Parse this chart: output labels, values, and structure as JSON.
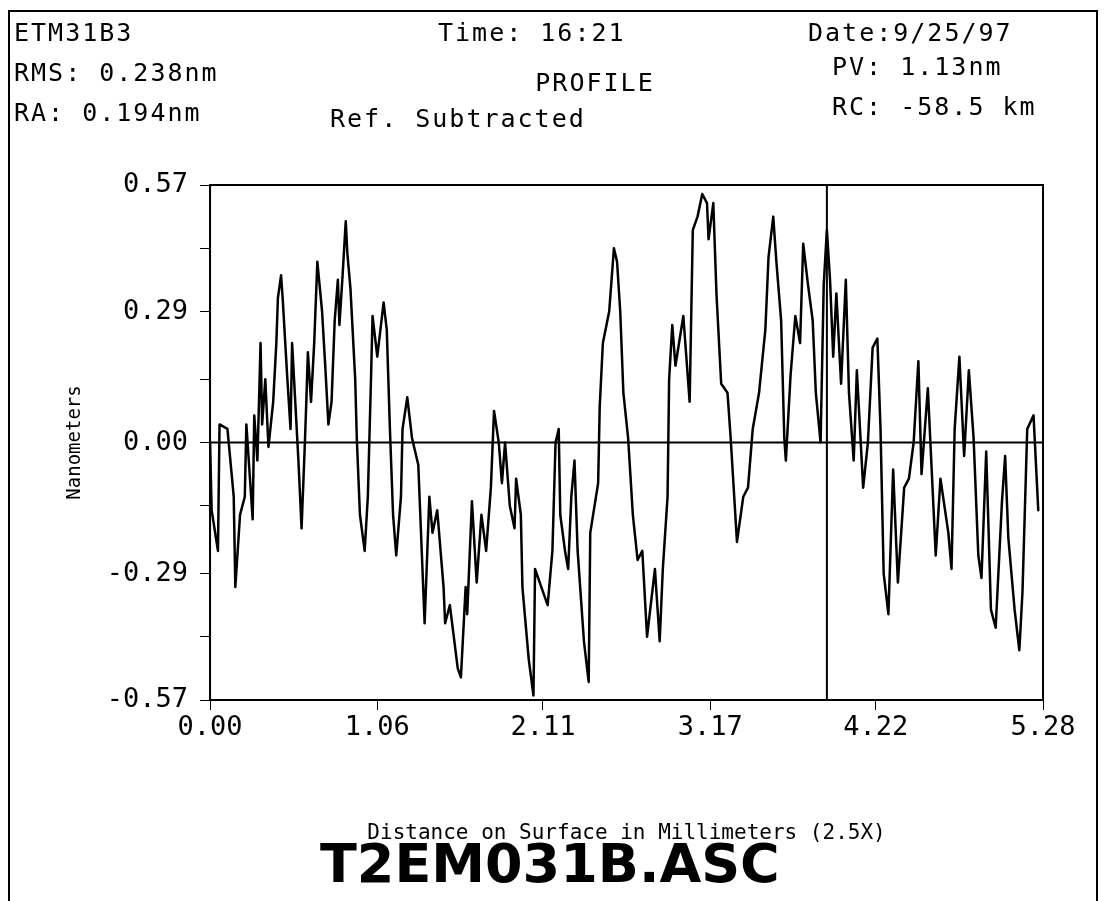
{
  "chart_data": {
    "type": "line",
    "title": "PROFILE",
    "xlabel": "Distance on Surface in Millimeters (2.5X)",
    "ylabel": "Nanometers",
    "annotations": [
      "ETM31B3",
      "Time: 16:21",
      "Date:9/25/97",
      "RMS: 0.238nm",
      "PV: 1.13nm",
      "RA: 0.194nm",
      "Ref. Subtracted",
      "RC: -58.5 km",
      "T2EM031B.ASC"
    ],
    "x": [
      0.0,
      0.01,
      0.05,
      0.06,
      0.11,
      0.15,
      0.16,
      0.19,
      0.22,
      0.23,
      0.27,
      0.28,
      0.3,
      0.32,
      0.33,
      0.35,
      0.37,
      0.4,
      0.42,
      0.43,
      0.45,
      0.46,
      0.49,
      0.51,
      0.52,
      0.54,
      0.56,
      0.58,
      0.6,
      0.61,
      0.62,
      0.64,
      0.66,
      0.68,
      0.71,
      0.73,
      0.75,
      0.77,
      0.79,
      0.81,
      0.82,
      0.84,
      0.86,
      0.87,
      0.89,
      0.92,
      0.93,
      0.95,
      0.98,
      1.0,
      1.02,
      1.03,
      1.06,
      1.1,
      1.12,
      1.14,
      1.16,
      1.18,
      1.21,
      1.22,
      1.25,
      1.28,
      1.32,
      1.36,
      1.39,
      1.41,
      1.44,
      1.48,
      1.49,
      1.52,
      1.57,
      1.59,
      1.62,
      1.63,
      1.66,
      1.69,
      1.72,
      1.75,
      1.78,
      1.8,
      1.83,
      1.85,
      1.87,
      1.9,
      1.93,
      1.94,
      1.97,
      1.98,
      2.02,
      2.05,
      2.06,
      2.1,
      2.14,
      2.17,
      2.19,
      2.21,
      2.22,
      2.25,
      2.27,
      2.29,
      2.31,
      2.33,
      2.37,
      2.4,
      2.41,
      2.46,
      2.47,
      2.49,
      2.53,
      2.56,
      2.58,
      2.6,
      2.62,
      2.65,
      2.68,
      2.71,
      2.74,
      2.77,
      2.82,
      2.85,
      2.87,
      2.9,
      2.91,
      2.93,
      2.95,
      3.0,
      3.04,
      3.06,
      3.09,
      3.12,
      3.15,
      3.16,
      3.19,
      3.21,
      3.24,
      3.28,
      3.3,
      3.34,
      3.38,
      3.41,
      3.44,
      3.48,
      3.52,
      3.54,
      3.57,
      3.59,
      3.62,
      3.64,
      3.65,
      3.68,
      3.71,
      3.74,
      3.76,
      3.79,
      3.82,
      3.84,
      3.87,
      3.89,
      3.91,
      3.93,
      3.95,
      3.97,
      4.0,
      4.03,
      4.05,
      4.08,
      4.1,
      4.14,
      4.17,
      4.2,
      4.23,
      4.25,
      4.27,
      4.3,
      4.33,
      4.36,
      4.4,
      4.43,
      4.46,
      4.49,
      4.51,
      4.55,
      4.6,
      4.63,
      4.68,
      4.7,
      4.72,
      4.75,
      4.78,
      4.81,
      4.84,
      4.87,
      4.89,
      4.92,
      4.95,
      4.98,
      5.02,
      5.04,
      5.06,
      5.1,
      5.13,
      5.15,
      5.18,
      5.22,
      5.25
    ],
    "series": [
      {
        "color": "#000000",
        "values": [
          0.0,
          -0.15,
          -0.24,
          0.04,
          0.03,
          -0.12,
          -0.32,
          -0.16,
          -0.12,
          0.04,
          -0.17,
          0.06,
          -0.04,
          0.22,
          0.04,
          0.14,
          -0.01,
          0.09,
          0.22,
          0.32,
          0.37,
          0.32,
          0.14,
          0.03,
          0.22,
          0.09,
          -0.04,
          -0.19,
          -0.01,
          0.09,
          0.2,
          0.09,
          0.22,
          0.4,
          0.29,
          0.17,
          0.04,
          0.09,
          0.27,
          0.36,
          0.26,
          0.37,
          0.49,
          0.42,
          0.34,
          0.14,
          0.01,
          -0.16,
          -0.24,
          -0.12,
          0.14,
          0.28,
          0.19,
          0.31,
          0.25,
          0.03,
          -0.16,
          -0.25,
          -0.12,
          0.03,
          0.1,
          0.01,
          -0.05,
          -0.4,
          -0.12,
          -0.2,
          -0.15,
          -0.32,
          -0.4,
          -0.36,
          -0.5,
          -0.52,
          -0.32,
          -0.38,
          -0.13,
          -0.31,
          -0.16,
          -0.24,
          -0.1,
          0.07,
          0.0,
          -0.09,
          0.0,
          -0.14,
          -0.19,
          -0.08,
          -0.16,
          -0.32,
          -0.48,
          -0.56,
          -0.28,
          -0.32,
          -0.36,
          -0.24,
          0.0,
          0.03,
          -0.16,
          -0.24,
          -0.28,
          -0.12,
          -0.04,
          -0.24,
          -0.44,
          -0.53,
          -0.2,
          -0.09,
          0.08,
          0.22,
          0.29,
          0.43,
          0.4,
          0.29,
          0.11,
          0.01,
          -0.16,
          -0.26,
          -0.24,
          -0.43,
          -0.28,
          -0.44,
          -0.28,
          -0.12,
          0.14,
          0.26,
          0.17,
          0.28,
          0.09,
          0.47,
          0.5,
          0.55,
          0.53,
          0.45,
          0.53,
          0.33,
          0.13,
          0.11,
          0.01,
          -0.22,
          -0.12,
          -0.1,
          0.03,
          0.11,
          0.25,
          0.41,
          0.5,
          0.4,
          0.27,
          0.01,
          -0.04,
          0.15,
          0.28,
          0.22,
          0.44,
          0.35,
          0.27,
          0.11,
          0.0,
          0.35,
          0.47,
          0.36,
          0.19,
          0.33,
          0.13,
          0.36,
          0.11,
          -0.04,
          0.16,
          -0.1,
          0.0,
          0.21,
          0.23,
          0.03,
          -0.29,
          -0.38,
          -0.06,
          -0.31,
          -0.1,
          -0.08,
          0.0,
          0.18,
          -0.07,
          0.12,
          -0.25,
          -0.08,
          -0.2,
          -0.28,
          0.03,
          0.19,
          -0.03,
          0.16,
          0.01,
          -0.25,
          -0.3,
          -0.02,
          -0.37,
          -0.41,
          -0.13,
          -0.03,
          -0.21,
          -0.37,
          -0.46,
          -0.33,
          0.03,
          0.06,
          -0.15
        ]
      }
    ],
    "xlim": [
      0,
      5.28
    ],
    "xticks": [
      {
        "value": 0,
        "label": "0.00"
      },
      1.06,
      2.11,
      3.17,
      4.22,
      5.28
    ],
    "ylim": [
      -0.57,
      0.57
    ],
    "yticks": [
      -0.57,
      {
        "value": -0.43,
        "label": null
      },
      -0.29,
      {
        "value": -0.14,
        "label": null
      },
      {
        "value": 0,
        "label": "0.00"
      },
      {
        "value": 0.14,
        "label": null
      },
      0.29,
      {
        "value": 0.43,
        "label": null
      },
      0.57
    ],
    "ref_lines": [
      {
        "axis": "y",
        "value": 0,
        "color": "#000000"
      },
      {
        "axis": "x",
        "value": 3.91,
        "color": "#000000"
      }
    ],
    "legend": false,
    "marker": "none",
    "line_style": "solid"
  }
}
